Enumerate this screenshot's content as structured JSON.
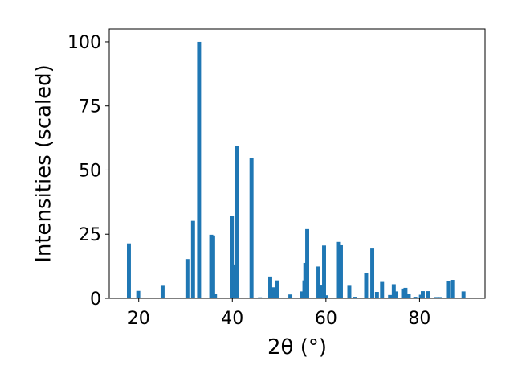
{
  "chart_data": {
    "type": "bar",
    "xlabel": "2θ (°)",
    "ylabel": "Intensities (scaled)",
    "xlim": [
      13.7,
      94.0
    ],
    "ylim": [
      0,
      105
    ],
    "x_ticks": [
      "20",
      "40",
      "60",
      "80"
    ],
    "y_ticks": [
      "0",
      "25",
      "50",
      "75",
      "100"
    ],
    "bar_color": "#1f77b4",
    "bar_width": 0.85,
    "grid": false,
    "series": [
      {
        "x": [
          17.9,
          19.9,
          25.1,
          30.4,
          31.6,
          32.9,
          35.5,
          35.9,
          36.3,
          39.9,
          40.5,
          41.0,
          44.1,
          45.9,
          48.1,
          48.7,
          49.5,
          52.4,
          54.8,
          55.4,
          55.6,
          56.0,
          58.4,
          58.8,
          59.6,
          60.1,
          62.6,
          63.2,
          65.0,
          66.2,
          68.6,
          69.9,
          70.9,
          72.0,
          73.7,
          74.5,
          75.0,
          76.5,
          77.0,
          77.7,
          79.1,
          80.3,
          80.7,
          81.9,
          83.6,
          84.3,
          86.1,
          87.0,
          89.4
        ],
        "values": [
          21.4,
          2.9,
          4.9,
          15.3,
          30.2,
          100.0,
          24.8,
          24.5,
          1.8,
          32.0,
          13.2,
          59.4,
          54.7,
          0.4,
          8.5,
          4.3,
          7.0,
          1.5,
          2.7,
          7.0,
          13.8,
          27.0,
          12.4,
          5.0,
          20.6,
          1.2,
          22.0,
          20.7,
          4.9,
          0.6,
          9.9,
          19.4,
          2.5,
          6.4,
          1.3,
          5.5,
          2.7,
          3.8,
          4.1,
          1.7,
          0.6,
          1.4,
          2.8,
          2.8,
          0.5,
          0.5,
          6.7,
          7.2,
          2.7
        ]
      }
    ]
  }
}
